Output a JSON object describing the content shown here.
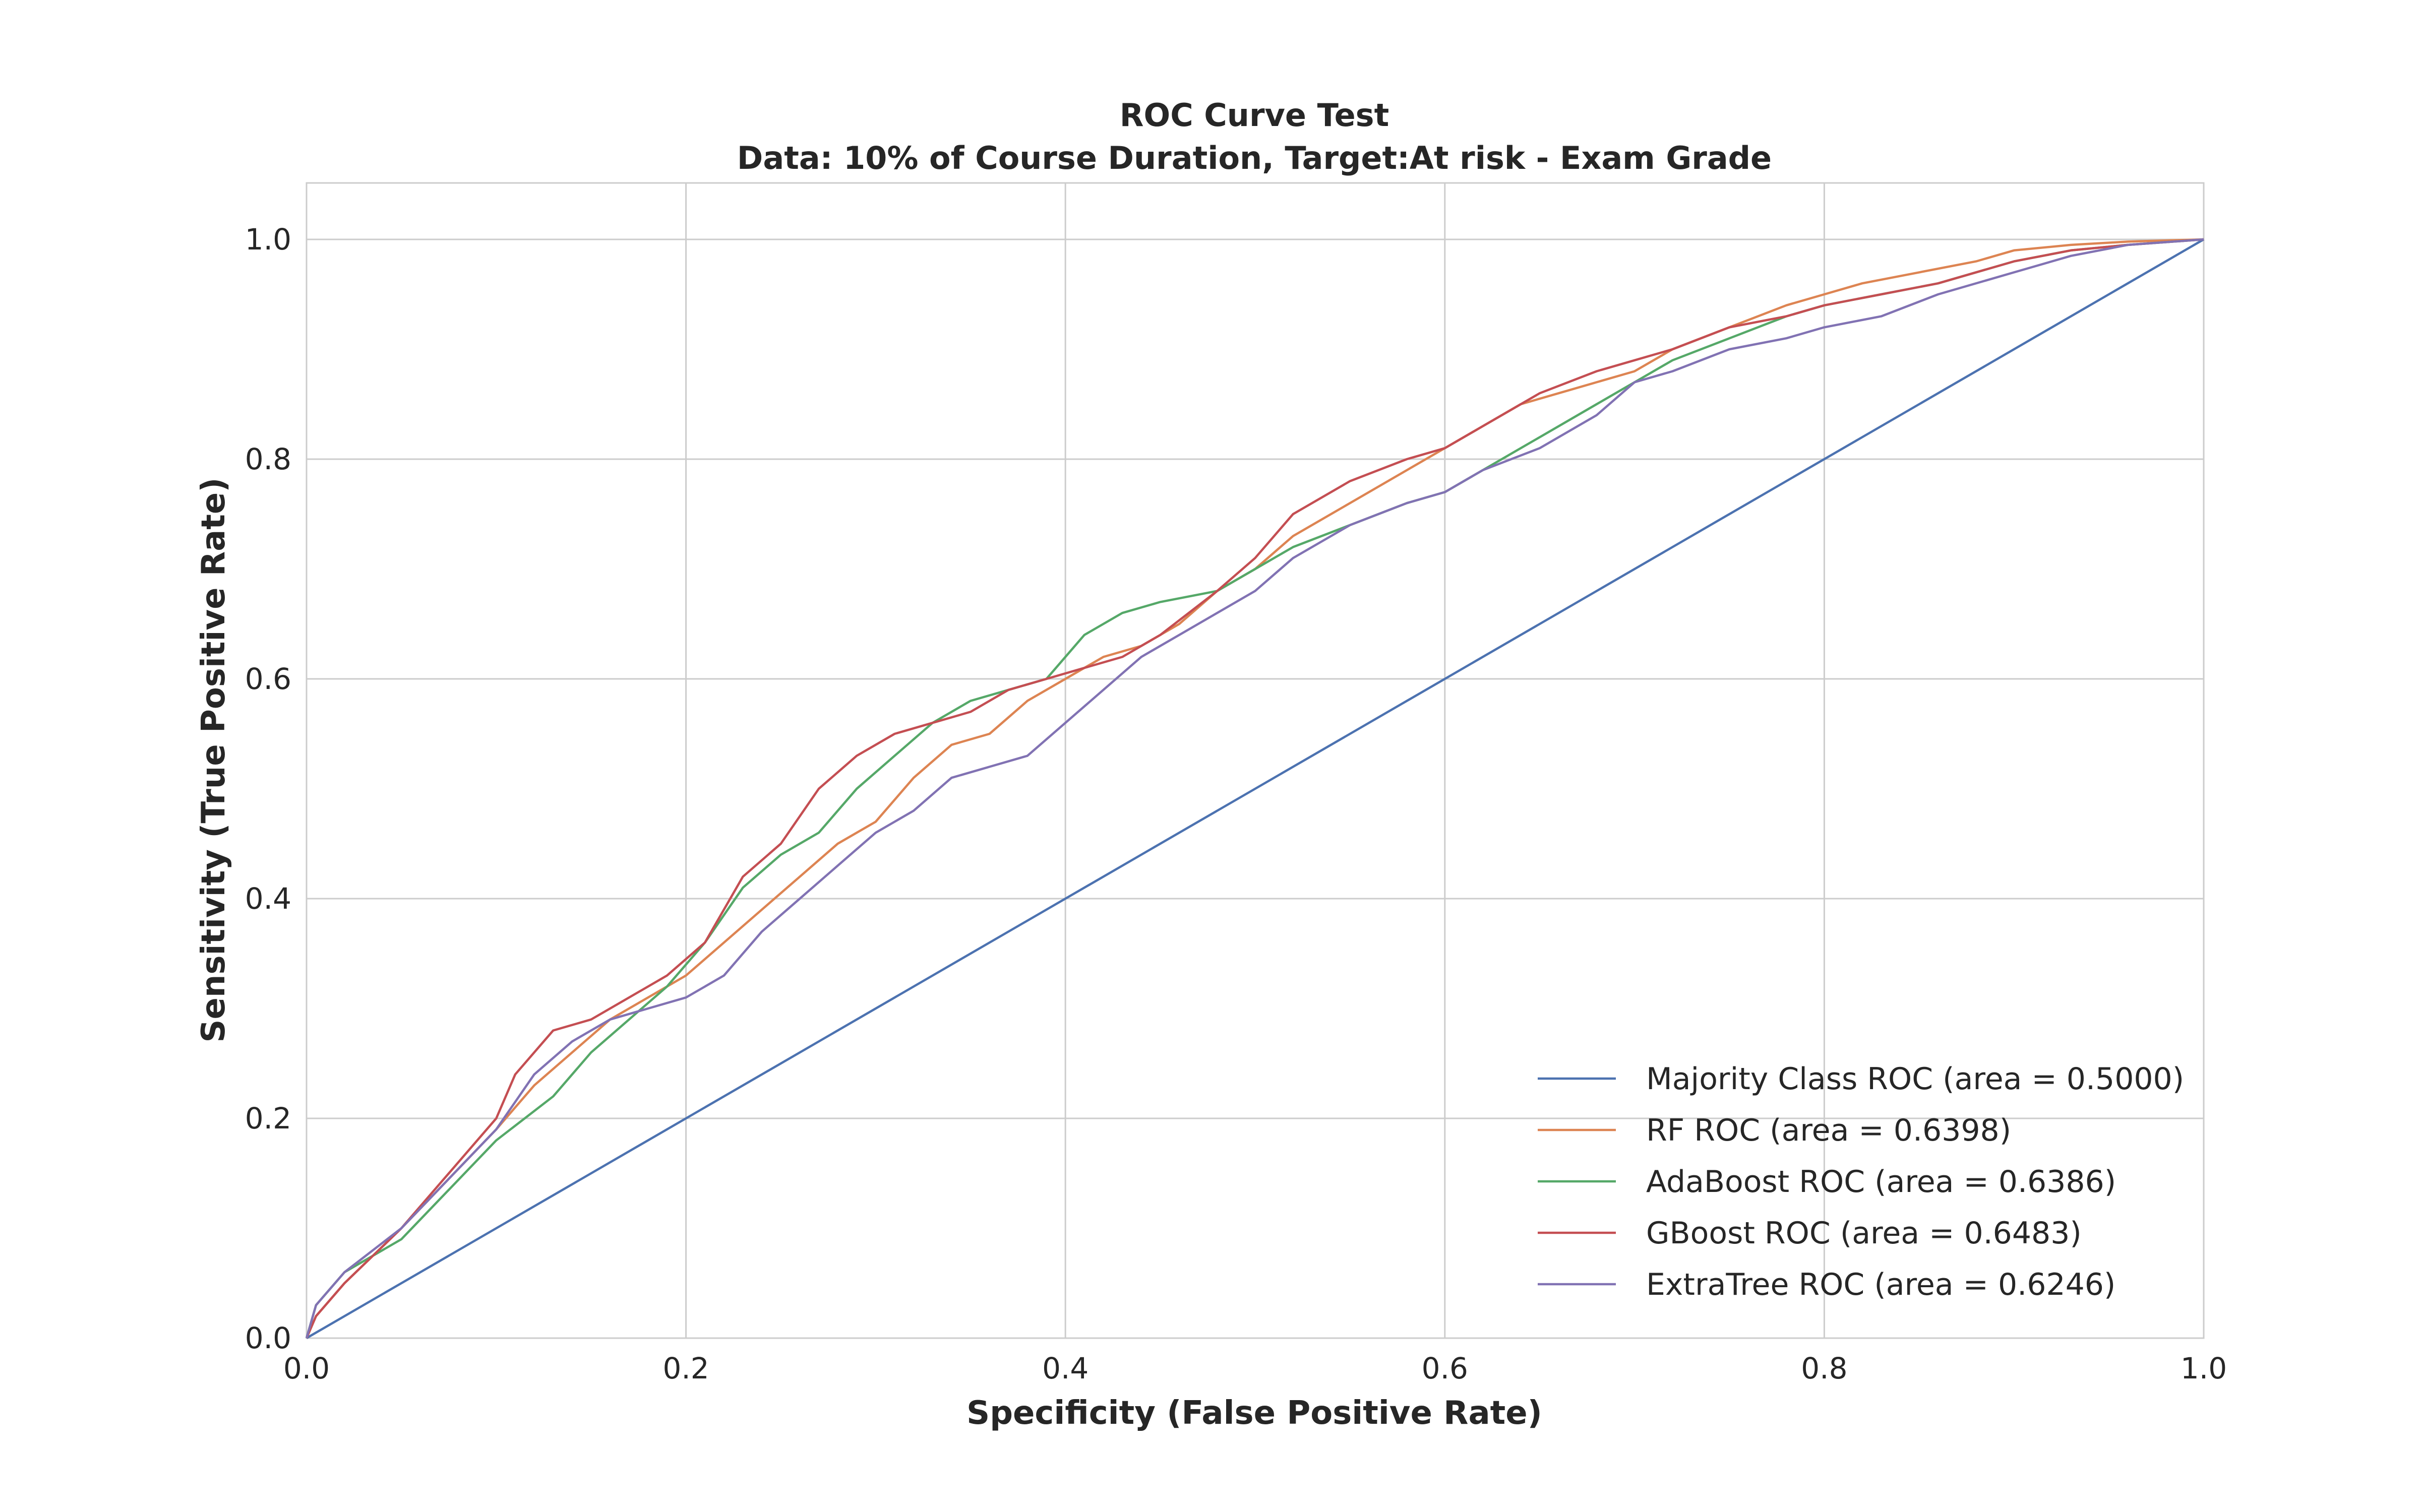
{
  "chart_data": {
    "type": "line",
    "title": "ROC Curve Test",
    "subtitle": "Data: 10% of Course Duration, Target:At risk - Exam Grade",
    "xlabel": "Specificity (False Positive Rate)",
    "ylabel": "Sensitivity (True Positive Rate)",
    "xlim": [
      0.0,
      1.0
    ],
    "ylim": [
      0.0,
      1.0
    ],
    "xticks": [
      "0.0",
      "0.2",
      "0.4",
      "0.6",
      "0.8",
      "1.0"
    ],
    "yticks": [
      "0.0",
      "0.2",
      "0.4",
      "0.6",
      "0.8",
      "1.0"
    ],
    "grid": true,
    "legend_position": "lower-right",
    "series": [
      {
        "name": "Majority Class ROC (area = 0.5000)",
        "color": "#4c72b0",
        "x": [
          0.0,
          1.0
        ],
        "y": [
          0.0,
          1.0
        ]
      },
      {
        "name": "RF ROC (area = 0.6398)",
        "color": "#dd8452",
        "x": [
          0.0,
          0.005,
          0.02,
          0.05,
          0.1,
          0.12,
          0.14,
          0.16,
          0.18,
          0.2,
          0.22,
          0.24,
          0.26,
          0.28,
          0.3,
          0.32,
          0.34,
          0.36,
          0.38,
          0.4,
          0.42,
          0.44,
          0.46,
          0.48,
          0.5,
          0.52,
          0.55,
          0.58,
          0.6,
          0.62,
          0.64,
          0.66,
          0.68,
          0.7,
          0.72,
          0.75,
          0.78,
          0.8,
          0.82,
          0.85,
          0.88,
          0.9,
          0.93,
          0.96,
          1.0
        ],
        "y": [
          0.0,
          0.02,
          0.05,
          0.1,
          0.19,
          0.23,
          0.26,
          0.29,
          0.31,
          0.33,
          0.36,
          0.39,
          0.42,
          0.45,
          0.47,
          0.51,
          0.54,
          0.55,
          0.58,
          0.6,
          0.62,
          0.63,
          0.65,
          0.68,
          0.7,
          0.73,
          0.76,
          0.79,
          0.81,
          0.83,
          0.85,
          0.86,
          0.87,
          0.88,
          0.9,
          0.92,
          0.94,
          0.95,
          0.96,
          0.97,
          0.98,
          0.99,
          0.995,
          0.998,
          1.0
        ]
      },
      {
        "name": "AdaBoost ROC (area = 0.6386)",
        "color": "#55a868",
        "x": [
          0.0,
          0.005,
          0.02,
          0.05,
          0.1,
          0.13,
          0.15,
          0.17,
          0.19,
          0.21,
          0.23,
          0.25,
          0.27,
          0.29,
          0.31,
          0.33,
          0.35,
          0.37,
          0.39,
          0.41,
          0.43,
          0.45,
          0.48,
          0.5,
          0.52,
          0.55,
          0.58,
          0.6,
          0.62,
          0.65,
          0.68,
          0.7,
          0.72,
          0.75,
          0.78,
          0.8,
          0.83,
          0.86,
          0.9,
          0.93,
          0.96,
          1.0
        ],
        "y": [
          0.0,
          0.03,
          0.06,
          0.09,
          0.18,
          0.22,
          0.26,
          0.29,
          0.32,
          0.36,
          0.41,
          0.44,
          0.46,
          0.5,
          0.53,
          0.56,
          0.58,
          0.59,
          0.6,
          0.64,
          0.66,
          0.67,
          0.68,
          0.7,
          0.72,
          0.74,
          0.76,
          0.77,
          0.79,
          0.82,
          0.85,
          0.87,
          0.89,
          0.91,
          0.93,
          0.94,
          0.95,
          0.96,
          0.98,
          0.99,
          0.995,
          1.0
        ]
      },
      {
        "name": "GBoost ROC (area = 0.6483)",
        "color": "#c44e52",
        "x": [
          0.0,
          0.005,
          0.02,
          0.05,
          0.1,
          0.11,
          0.13,
          0.15,
          0.17,
          0.19,
          0.21,
          0.23,
          0.25,
          0.27,
          0.29,
          0.31,
          0.33,
          0.35,
          0.37,
          0.39,
          0.41,
          0.43,
          0.45,
          0.48,
          0.5,
          0.52,
          0.55,
          0.58,
          0.6,
          0.62,
          0.65,
          0.68,
          0.7,
          0.72,
          0.75,
          0.78,
          0.8,
          0.83,
          0.86,
          0.9,
          0.93,
          0.96,
          1.0
        ],
        "y": [
          0.0,
          0.02,
          0.05,
          0.1,
          0.2,
          0.24,
          0.28,
          0.29,
          0.31,
          0.33,
          0.36,
          0.42,
          0.45,
          0.5,
          0.53,
          0.55,
          0.56,
          0.57,
          0.59,
          0.6,
          0.61,
          0.62,
          0.64,
          0.68,
          0.71,
          0.75,
          0.78,
          0.8,
          0.81,
          0.83,
          0.86,
          0.88,
          0.89,
          0.9,
          0.92,
          0.93,
          0.94,
          0.95,
          0.96,
          0.98,
          0.99,
          0.995,
          1.0
        ]
      },
      {
        "name": "ExtraTree ROC (area = 0.6246)",
        "color": "#8172b3",
        "x": [
          0.0,
          0.005,
          0.02,
          0.05,
          0.1,
          0.12,
          0.14,
          0.16,
          0.18,
          0.2,
          0.22,
          0.24,
          0.26,
          0.28,
          0.3,
          0.32,
          0.34,
          0.36,
          0.38,
          0.4,
          0.42,
          0.44,
          0.46,
          0.48,
          0.5,
          0.52,
          0.55,
          0.58,
          0.6,
          0.62,
          0.65,
          0.68,
          0.7,
          0.72,
          0.75,
          0.78,
          0.8,
          0.83,
          0.86,
          0.9,
          0.93,
          0.96,
          1.0
        ],
        "y": [
          0.0,
          0.03,
          0.06,
          0.1,
          0.19,
          0.24,
          0.27,
          0.29,
          0.3,
          0.31,
          0.33,
          0.37,
          0.4,
          0.43,
          0.46,
          0.48,
          0.51,
          0.52,
          0.53,
          0.56,
          0.59,
          0.62,
          0.64,
          0.66,
          0.68,
          0.71,
          0.74,
          0.76,
          0.77,
          0.79,
          0.81,
          0.84,
          0.87,
          0.88,
          0.9,
          0.91,
          0.92,
          0.93,
          0.95,
          0.97,
          0.985,
          0.995,
          1.0
        ]
      }
    ]
  }
}
